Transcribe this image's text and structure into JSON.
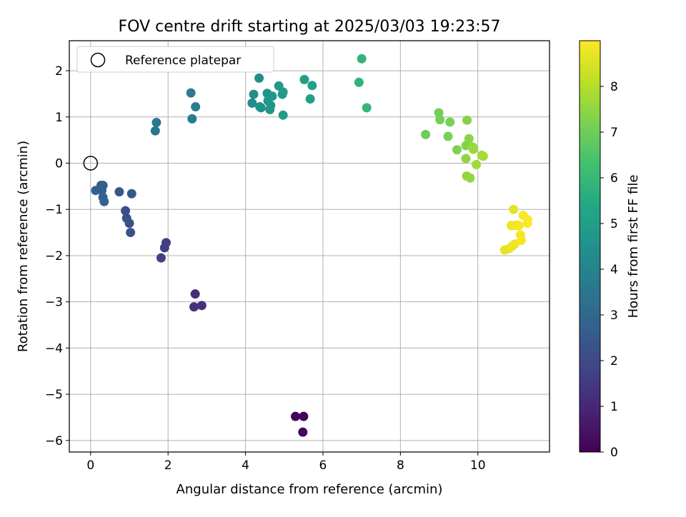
{
  "chart_data": {
    "type": "scatter",
    "title": "FOV centre drift starting at 2025/03/03 19:23:57",
    "xlabel": "Angular distance from reference (arcmin)",
    "ylabel": "Rotation from reference (arcmin)",
    "xlim": [
      -0.55,
      11.85
    ],
    "ylim": [
      -6.25,
      2.65
    ],
    "xticks": [
      0,
      2,
      4,
      6,
      8,
      10
    ],
    "yticks": [
      2,
      1,
      0,
      -1,
      -2,
      -3,
      -4,
      -5,
      -6
    ],
    "xtick_labels": [
      "0",
      "2",
      "4",
      "6",
      "8",
      "10"
    ],
    "ytick_labels": [
      "2",
      "1",
      "0",
      "−1",
      "−2",
      "−3",
      "−4",
      "−5",
      "−6"
    ],
    "grid": true,
    "legend": {
      "placement": "upper-left",
      "label": "Reference platepar"
    },
    "reference_point": {
      "x": 0,
      "y": 0
    },
    "colorbar": {
      "label": "Hours from first FF file",
      "range": [
        0,
        9.0
      ],
      "ticks": [
        0,
        1,
        2,
        3,
        4,
        5,
        6,
        7,
        8
      ],
      "tick_labels": [
        "0",
        "1",
        "2",
        "3",
        "4",
        "5",
        "6",
        "7",
        "8"
      ],
      "colormap": "viridis"
    },
    "points": [
      {
        "x": 5.29,
        "y": -5.48,
        "c": 0.05
      },
      {
        "x": 5.5,
        "y": -5.48,
        "c": 0.1
      },
      {
        "x": 5.48,
        "y": -5.82,
        "c": 0.15
      },
      {
        "x": 2.7,
        "y": -2.83,
        "c": 1.1
      },
      {
        "x": 2.67,
        "y": -3.11,
        "c": 1.2
      },
      {
        "x": 2.87,
        "y": -3.08,
        "c": 1.25
      },
      {
        "x": 1.95,
        "y": -1.72,
        "c": 1.6
      },
      {
        "x": 1.91,
        "y": -1.83,
        "c": 1.65
      },
      {
        "x": 1.82,
        "y": -2.05,
        "c": 1.7
      },
      {
        "x": 0.9,
        "y": -1.03,
        "c": 2.1
      },
      {
        "x": 0.93,
        "y": -1.19,
        "c": 2.15
      },
      {
        "x": 1.0,
        "y": -1.3,
        "c": 2.2
      },
      {
        "x": 1.03,
        "y": -1.5,
        "c": 2.25
      },
      {
        "x": 0.74,
        "y": -0.62,
        "c": 2.4
      },
      {
        "x": 1.06,
        "y": -0.66,
        "c": 2.45
      },
      {
        "x": 0.27,
        "y": -0.48,
        "c": 2.6
      },
      {
        "x": 0.32,
        "y": -0.48,
        "c": 2.65
      },
      {
        "x": 0.13,
        "y": -0.59,
        "c": 2.7
      },
      {
        "x": 0.29,
        "y": -0.59,
        "c": 2.75
      },
      {
        "x": 0.32,
        "y": -0.74,
        "c": 2.8
      },
      {
        "x": 0.35,
        "y": -0.83,
        "c": 2.85
      },
      {
        "x": 1.67,
        "y": 0.7,
        "c": 3.5
      },
      {
        "x": 1.7,
        "y": 0.88,
        "c": 3.55
      },
      {
        "x": 2.62,
        "y": 0.96,
        "c": 3.7
      },
      {
        "x": 2.59,
        "y": 1.52,
        "c": 3.75
      },
      {
        "x": 2.71,
        "y": 1.22,
        "c": 3.8
      },
      {
        "x": 4.17,
        "y": 1.3,
        "c": 4.3
      },
      {
        "x": 4.21,
        "y": 1.49,
        "c": 4.35
      },
      {
        "x": 4.35,
        "y": 1.84,
        "c": 4.4
      },
      {
        "x": 4.37,
        "y": 1.22,
        "c": 4.45
      },
      {
        "x": 4.4,
        "y": 1.2,
        "c": 4.5
      },
      {
        "x": 4.56,
        "y": 1.51,
        "c": 4.55
      },
      {
        "x": 4.58,
        "y": 1.35,
        "c": 4.6
      },
      {
        "x": 4.63,
        "y": 1.16,
        "c": 4.65
      },
      {
        "x": 4.65,
        "y": 1.25,
        "c": 4.7
      },
      {
        "x": 4.69,
        "y": 1.45,
        "c": 4.75
      },
      {
        "x": 4.86,
        "y": 1.67,
        "c": 4.8
      },
      {
        "x": 4.95,
        "y": 1.49,
        "c": 4.85
      },
      {
        "x": 4.97,
        "y": 1.54,
        "c": 4.9
      },
      {
        "x": 4.97,
        "y": 1.04,
        "c": 4.95
      },
      {
        "x": 5.52,
        "y": 1.81,
        "c": 5.0
      },
      {
        "x": 5.67,
        "y": 1.39,
        "c": 5.05
      },
      {
        "x": 5.72,
        "y": 1.68,
        "c": 5.1
      },
      {
        "x": 6.93,
        "y": 1.75,
        "c": 5.8
      },
      {
        "x": 7.0,
        "y": 2.26,
        "c": 5.85
      },
      {
        "x": 7.13,
        "y": 1.2,
        "c": 5.9
      },
      {
        "x": 8.65,
        "y": 0.62,
        "c": 7.0
      },
      {
        "x": 8.99,
        "y": 1.09,
        "c": 7.05
      },
      {
        "x": 9.02,
        "y": 0.94,
        "c": 7.1
      },
      {
        "x": 9.23,
        "y": 0.58,
        "c": 7.15
      },
      {
        "x": 9.28,
        "y": 0.89,
        "c": 7.2
      },
      {
        "x": 9.46,
        "y": 0.29,
        "c": 7.25
      },
      {
        "x": 9.69,
        "y": 0.38,
        "c": 7.3
      },
      {
        "x": 9.72,
        "y": 0.93,
        "c": 7.35
      },
      {
        "x": 9.77,
        "y": 0.53,
        "c": 7.4
      },
      {
        "x": 9.69,
        "y": 0.1,
        "c": 7.45
      },
      {
        "x": 9.71,
        "y": -0.28,
        "c": 7.5
      },
      {
        "x": 9.8,
        "y": -0.32,
        "c": 7.55
      },
      {
        "x": 9.87,
        "y": 0.35,
        "c": 7.6
      },
      {
        "x": 9.88,
        "y": 0.3,
        "c": 7.65
      },
      {
        "x": 9.96,
        "y": -0.03,
        "c": 7.7
      },
      {
        "x": 10.1,
        "y": 0.17,
        "c": 7.75
      },
      {
        "x": 10.14,
        "y": 0.15,
        "c": 7.8
      },
      {
        "x": 10.92,
        "y": -1.0,
        "c": 8.6
      },
      {
        "x": 10.69,
        "y": -1.88,
        "c": 8.65
      },
      {
        "x": 10.8,
        "y": -1.85,
        "c": 8.7
      },
      {
        "x": 10.88,
        "y": -1.8,
        "c": 8.75
      },
      {
        "x": 10.95,
        "y": -1.75,
        "c": 8.8
      },
      {
        "x": 10.86,
        "y": -1.35,
        "c": 8.82
      },
      {
        "x": 11.0,
        "y": -1.34,
        "c": 8.84
      },
      {
        "x": 10.95,
        "y": -1.35,
        "c": 8.86
      },
      {
        "x": 11.06,
        "y": -1.35,
        "c": 8.88
      },
      {
        "x": 11.1,
        "y": -1.55,
        "c": 8.9
      },
      {
        "x": 11.12,
        "y": -1.67,
        "c": 8.92
      },
      {
        "x": 11.17,
        "y": -1.13,
        "c": 8.94
      },
      {
        "x": 11.28,
        "y": -1.22,
        "c": 8.96
      },
      {
        "x": 11.28,
        "y": -1.3,
        "c": 8.98
      }
    ]
  }
}
